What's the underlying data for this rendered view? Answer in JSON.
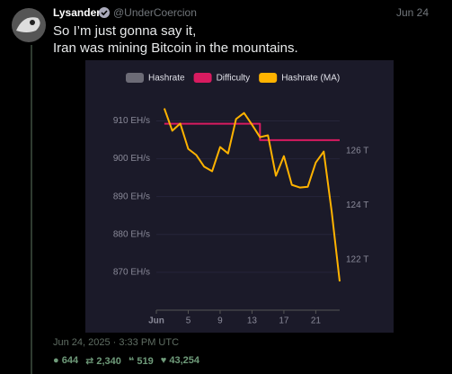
{
  "tweet": {
    "name": "Lysander",
    "handle": "@UnderCoercion",
    "date": "Jun 24",
    "text": [
      "So I’m just gonna say it,",
      "Iran was mining Bitcoin in the mountains."
    ],
    "timestamp": "Jun 24, 2025 · 3:33 PM UTC",
    "stats": {
      "replies": "644",
      "retweets": "2,340",
      "quotes": "519",
      "likes": "43,254"
    }
  },
  "chart_data": {
    "type": "line",
    "grid": true,
    "x": [
      2,
      3,
      4,
      5,
      6,
      7,
      8,
      9,
      10,
      11,
      12,
      13,
      14,
      15,
      16,
      17,
      18,
      19,
      20,
      21,
      22,
      23,
      24
    ],
    "xlim": [
      1,
      24
    ],
    "xticks": [
      {
        "value": 1,
        "label": "Jun"
      },
      5,
      9,
      13,
      17,
      21
    ],
    "ylim": [
      860,
      917
    ],
    "yticks": [
      {
        "value": 870,
        "label": "870 EH/s"
      },
      {
        "value": 880,
        "label": "880 EH/s"
      },
      {
        "value": 890,
        "label": "890 EH/s"
      },
      {
        "value": 900,
        "label": "900 EH/s"
      },
      {
        "value": 910,
        "label": "910 EH/s"
      }
    ],
    "y2lim": [
      120.15,
      128.08
    ],
    "y2ticks": [
      {
        "value": 122,
        "label": "122 T"
      },
      {
        "value": 124,
        "label": "124 T"
      },
      {
        "value": 126,
        "label": "126 T"
      }
    ],
    "series": [
      {
        "name": "Hashrate",
        "color": "#6c6b76"
      },
      {
        "name": "Difficulty",
        "color": "#d81b60",
        "axis": "y2",
        "step": true,
        "values": [
          127.0,
          127.0,
          127.0,
          127.0,
          127.0,
          127.0,
          127.0,
          127.0,
          127.0,
          127.0,
          127.0,
          127.0,
          126.4,
          126.4,
          126.4,
          126.4,
          126.4,
          126.4,
          126.4,
          126.4,
          126.4,
          126.4,
          126.4
        ]
      },
      {
        "name": "Hashrate (MA)",
        "color": "#ffb300",
        "values": [
          913.3,
          907.4,
          909.3,
          902.6,
          901.0,
          897.9,
          896.7,
          903.1,
          901.4,
          910.5,
          912.1,
          909.0,
          905.7,
          906.2,
          895.5,
          900.7,
          893.1,
          892.4,
          892.6,
          899.0,
          901.9,
          886.0,
          867.6
        ]
      }
    ]
  }
}
